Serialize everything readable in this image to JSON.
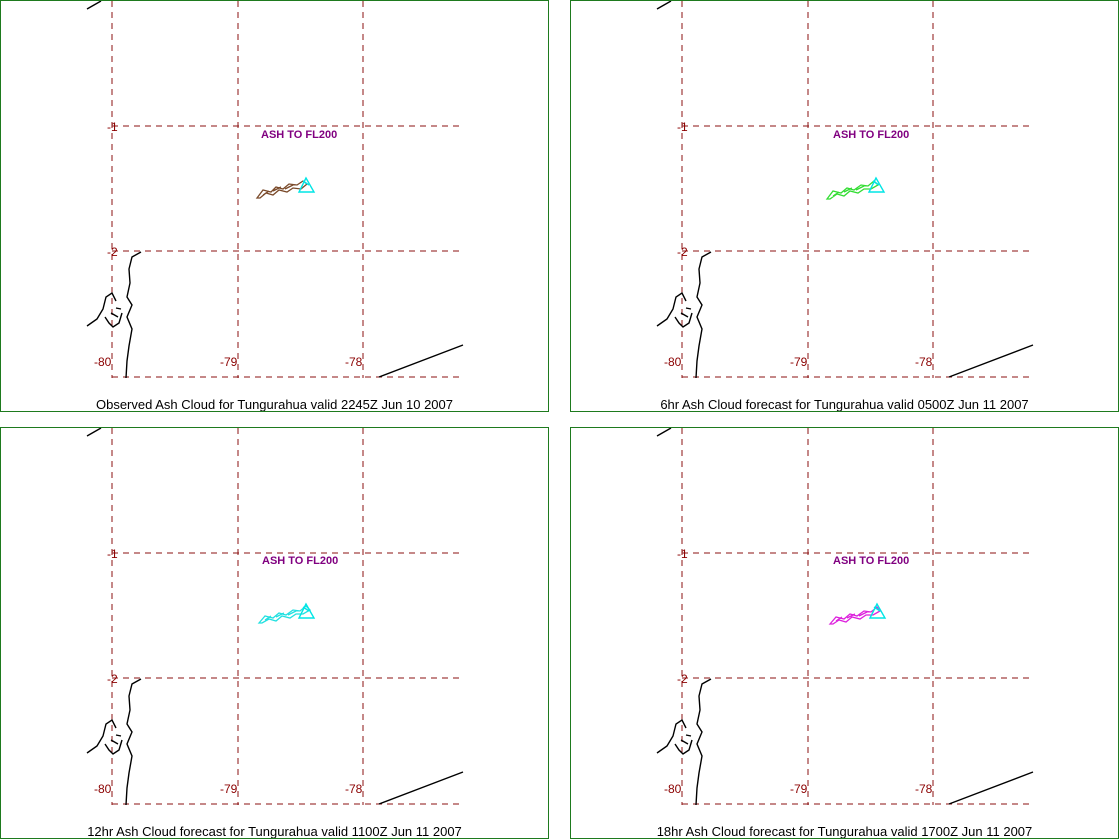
{
  "panels": [
    {
      "caption": "Observed Ash Cloud for Tungurahua valid 2245Z Jun 10 2007",
      "cloud_color": "#7a4a2a",
      "ash_label": "ASH TO FL200",
      "lat_labels": [
        "-1",
        "-2"
      ],
      "lon_labels": [
        "-80",
        "-79",
        "-78"
      ]
    },
    {
      "caption": "6hr Ash Cloud forecast for Tungurahua valid 0500Z Jun 11 2007",
      "cloud_color": "#33dd33",
      "ash_label": "ASH TO FL200",
      "lat_labels": [
        "-1",
        "-2"
      ],
      "lon_labels": [
        "-80",
        "-79",
        "-78"
      ]
    },
    {
      "caption": "12hr Ash Cloud forecast for Tungurahua valid 1100Z Jun 11 2007",
      "cloud_color": "#22e0e0",
      "ash_label": "ASH TO FL200",
      "lat_labels": [
        "-1",
        "-2"
      ],
      "lon_labels": [
        "-80",
        "-79",
        "-78"
      ]
    },
    {
      "caption": "18hr Ash Cloud forecast for Tungurahua valid 1700Z Jun 11 2007",
      "cloud_color": "#dd22dd",
      "ash_label": "ASH TO FL200",
      "lat_labels": [
        "-1",
        "-2"
      ],
      "lon_labels": [
        "-80",
        "-79",
        "-78"
      ]
    }
  ],
  "colors": {
    "border": "#1e7a1e",
    "grid": "#8b1010",
    "volcano_marker": "#00e5e5",
    "ash_label": "#800080"
  }
}
